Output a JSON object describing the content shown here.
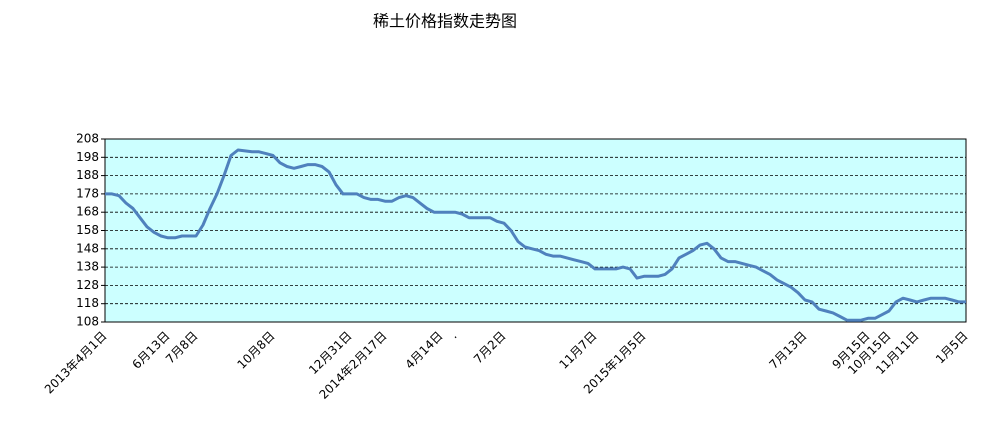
{
  "chart_data": {
    "type": "line",
    "title": "稀土价格指数走势图",
    "categories": [
      "2013年4月1日",
      null,
      null,
      null,
      null,
      null,
      null,
      null,
      null,
      "6月13日",
      null,
      null,
      null,
      "7月8日",
      null,
      null,
      null,
      null,
      null,
      null,
      null,
      null,
      null,
      null,
      "10月8日",
      null,
      null,
      null,
      null,
      null,
      null,
      null,
      null,
      null,
      null,
      "12月31日",
      null,
      null,
      null,
      null,
      "2014年2月17日",
      null,
      null,
      null,
      null,
      null,
      null,
      null,
      "4月14日",
      null,
      ".",
      null,
      null,
      null,
      null,
      null,
      null,
      "7月2日",
      null,
      null,
      null,
      null,
      null,
      null,
      null,
      null,
      null,
      null,
      null,
      null,
      "11月7日",
      null,
      null,
      null,
      null,
      null,
      null,
      "2015年1月5日",
      null,
      null,
      null,
      null,
      null,
      null,
      null,
      null,
      null,
      null,
      null,
      null,
      null,
      null,
      null,
      null,
      null,
      null,
      null,
      null,
      null,
      null,
      "7月13日",
      null,
      null,
      null,
      null,
      null,
      null,
      null,
      null,
      "9月15日",
      null,
      null,
      "10月15日",
      null,
      null,
      null,
      "11月11日",
      null,
      null,
      null,
      null,
      null,
      null,
      "1月5日"
    ],
    "series": [
      {
        "name": "稀土价格指数",
        "color": "#4f81bd",
        "values": [
          178,
          178,
          177,
          173,
          170,
          165,
          160,
          157,
          155,
          154,
          154,
          155,
          155,
          155,
          161,
          170,
          178,
          188,
          199,
          202,
          201.5,
          201,
          201,
          200,
          199,
          195,
          193,
          192,
          193,
          194,
          194,
          193,
          190,
          183,
          178,
          178,
          178,
          176,
          175,
          175,
          174,
          174,
          176,
          177,
          176,
          173,
          170,
          168,
          168,
          168,
          168,
          167,
          165,
          165,
          165,
          165,
          163,
          162,
          158,
          152,
          149,
          148,
          147,
          145,
          144,
          144,
          143,
          142,
          141,
          140,
          137,
          137,
          137,
          137,
          138,
          137,
          132,
          133,
          133,
          133,
          134,
          137,
          143,
          145,
          147,
          150,
          151,
          148,
          143,
          141,
          141,
          140,
          139,
          138,
          136,
          134,
          131,
          129,
          127,
          124,
          120,
          119,
          115,
          114,
          113,
          111,
          109,
          109,
          109,
          110,
          110,
          112,
          114,
          119,
          121,
          120,
          119,
          120,
          121,
          121,
          121,
          120,
          119,
          119
        ]
      }
    ],
    "ylim": [
      108,
      208
    ],
    "yticks": [
      108,
      118,
      128,
      138,
      148,
      158,
      168,
      178,
      188,
      198,
      208
    ],
    "grid": true,
    "plot_color": "#ccffff"
  }
}
